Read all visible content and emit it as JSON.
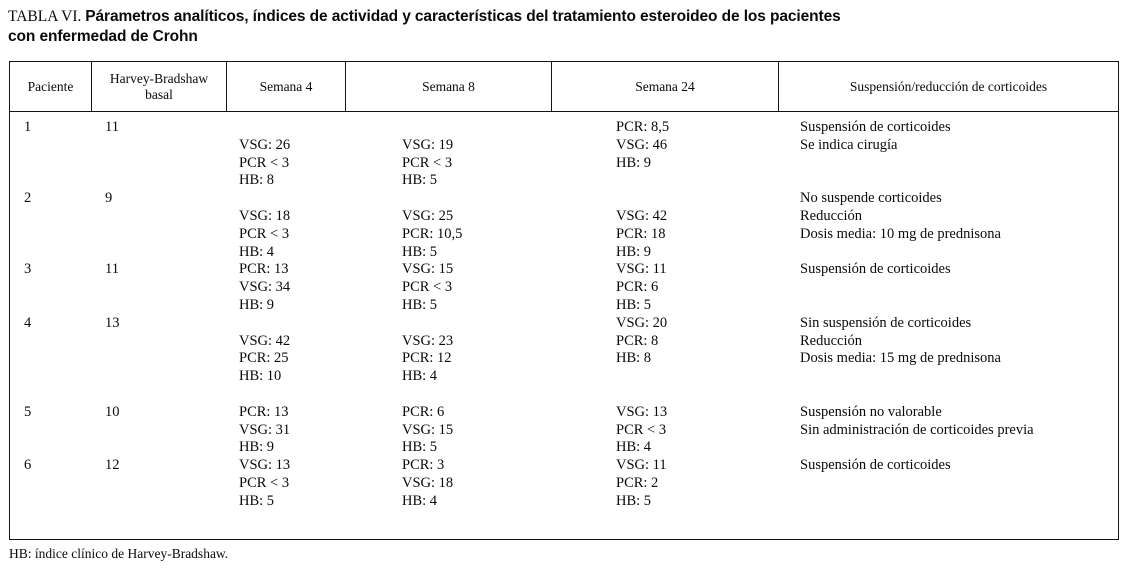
{
  "title": {
    "label": "TABLA VI.",
    "line1": "Párametros analíticos, índices de actividad y características del tratamiento esteroideo de los pacientes",
    "line2": "con enfermedad de Crohn"
  },
  "footnote": "HB: índice clínico de Harvey-Bradshaw.",
  "table": {
    "columns": [
      {
        "key": "paciente",
        "label": "Paciente"
      },
      {
        "key": "basal",
        "label": "Harvey-Bradshaw\nbasal"
      },
      {
        "key": "semana4",
        "label": "Semana 4"
      },
      {
        "key": "semana8",
        "label": "Semana 8"
      },
      {
        "key": "semana24",
        "label": "Semana 24"
      },
      {
        "key": "suspension",
        "label": "Suspensión/reducción de corticoides"
      }
    ],
    "patients": [
      {
        "paciente": "1",
        "basal": "11",
        "gap_after": false,
        "cells": {
          "semana4": [
            "",
            "VSG: 26",
            "PCR < 3",
            "HB: 8"
          ],
          "semana8": [
            "",
            "VSG: 19",
            "PCR < 3",
            "HB: 5"
          ],
          "semana24": [
            "PCR: 8,5",
            "VSG: 46",
            "HB: 9"
          ],
          "suspension": [
            "Suspensión de corticoides",
            "Se indica cirugía"
          ]
        }
      },
      {
        "paciente": "2",
        "basal": "9",
        "gap_after": false,
        "cells": {
          "semana4": [
            "",
            "VSG: 18",
            "PCR < 3",
            "HB: 4"
          ],
          "semana8": [
            "",
            "VSG: 25",
            "PCR: 10,5",
            "HB: 5"
          ],
          "semana24": [
            "",
            "VSG: 42",
            "PCR: 18",
            "HB: 9"
          ],
          "suspension": [
            "No suspende corticoides",
            "Reducción",
            "Dosis media: 10 mg de prednisona"
          ]
        }
      },
      {
        "paciente": "3",
        "basal": "11",
        "gap_after": false,
        "cells": {
          "semana4": [
            "PCR: 13",
            "VSG: 34",
            "HB: 9"
          ],
          "semana8": [
            "VSG: 15",
            "PCR < 3",
            "HB: 5"
          ],
          "semana24": [
            "VSG: 11",
            "PCR: 6",
            "HB: 5"
          ],
          "suspension": [
            "Suspensión de corticoides"
          ]
        }
      },
      {
        "paciente": "4",
        "basal": "13",
        "gap_after": true,
        "cells": {
          "semana4": [
            "",
            "VSG: 42",
            "PCR: 25",
            "HB: 10"
          ],
          "semana8": [
            "",
            "VSG: 23",
            "PCR: 12",
            "HB: 4"
          ],
          "semana24": [
            "VSG: 20",
            "PCR: 8",
            "HB: 8"
          ],
          "suspension": [
            "Sin suspensión de corticoides",
            "Reducción",
            "Dosis media: 15 mg de prednisona"
          ]
        }
      },
      {
        "paciente": "5",
        "basal": "10",
        "gap_after": false,
        "cells": {
          "semana4": [
            "PCR: 13",
            "VSG: 31",
            "HB: 9"
          ],
          "semana8": [
            "PCR: 6",
            "VSG: 15",
            "HB: 5"
          ],
          "semana24": [
            "VSG: 13",
            "PCR < 3",
            "HB: 4"
          ],
          "suspension": [
            "Suspensión no valorable",
            "Sin administración de corticoides previa"
          ]
        }
      },
      {
        "paciente": "6",
        "basal": "12",
        "gap_after": false,
        "cells": {
          "semana4": [
            "VSG: 13",
            "PCR < 3",
            "HB: 5"
          ],
          "semana8": [
            "PCR: 3",
            "VSG: 18",
            "HB: 4"
          ],
          "semana24": [
            "VSG: 11",
            "PCR: 2",
            "HB: 5"
          ],
          "suspension": [
            "Suspensión de corticoides"
          ]
        }
      }
    ]
  }
}
